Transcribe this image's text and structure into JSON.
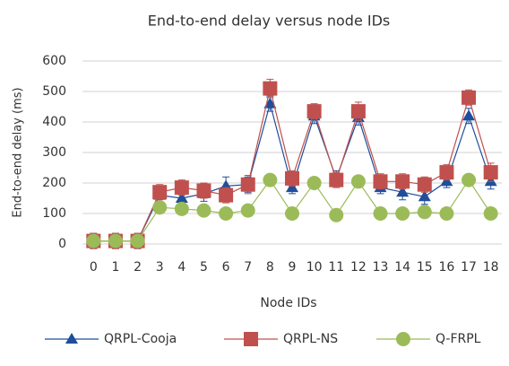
{
  "chart_data": {
    "type": "line",
    "title": "End-to-end delay versus node IDs",
    "x_label": "Node IDs",
    "y_label": "End-to-end delay (ms)",
    "categories": [
      "0",
      "1",
      "2",
      "3",
      "4",
      "5",
      "6",
      "7",
      "8",
      "9",
      "10",
      "11",
      "12",
      "13",
      "14",
      "15",
      "16",
      "17",
      "18"
    ],
    "series": [
      {
        "name": "QRPL-Cooja",
        "color": "#1f4e9a",
        "marker": "triangle",
        "values": [
          10,
          10,
          10,
          160,
          150,
          165,
          190,
          195,
          460,
          185,
          420,
          215,
          415,
          185,
          170,
          155,
          205,
          420,
          205
        ],
        "errors": [
          25,
          25,
          25,
          25,
          25,
          25,
          30,
          25,
          25,
          20,
          25,
          25,
          25,
          20,
          25,
          25,
          20,
          25,
          25
        ]
      },
      {
        "name": "QRPL-NS",
        "color": "#c0504d",
        "marker": "square",
        "values": [
          10,
          10,
          10,
          170,
          185,
          175,
          160,
          195,
          510,
          215,
          435,
          210,
          435,
          205,
          205,
          195,
          235,
          480,
          235
        ],
        "errors": [
          25,
          25,
          25,
          25,
          25,
          25,
          25,
          30,
          30,
          25,
          25,
          25,
          30,
          25,
          25,
          25,
          25,
          25,
          30
        ]
      },
      {
        "name": "Q-FRPL",
        "color": "#9bbb59",
        "marker": "circle",
        "values": [
          10,
          10,
          10,
          120,
          115,
          110,
          100,
          110,
          210,
          100,
          200,
          95,
          205,
          100,
          100,
          105,
          100,
          210,
          100
        ]
      }
    ],
    "ylim": [
      0,
      600
    ],
    "yticks": [
      0,
      100,
      200,
      300,
      400,
      500,
      600
    ],
    "grid": true,
    "legend": "bottom"
  }
}
